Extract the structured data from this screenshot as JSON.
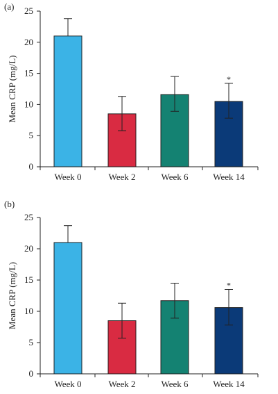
{
  "chart_data": [
    {
      "type": "bar",
      "panel_label": "(a)",
      "categories": [
        "Week 0",
        "Week 2",
        "Week 6",
        "Week 14"
      ],
      "values": [
        21.0,
        8.5,
        11.6,
        10.5
      ],
      "error_upper": [
        23.8,
        11.3,
        14.5,
        13.4
      ],
      "error_lower": [
        21.0,
        5.8,
        8.9,
        7.8
      ],
      "colors": [
        "#3bb3e6",
        "#d92b42",
        "#148272",
        "#0b3a78"
      ],
      "significance": [
        "",
        "",
        "",
        "*"
      ],
      "ylabel": "Mean CRP (mg/L)",
      "yticks": [
        0,
        5,
        10,
        15,
        20,
        25
      ],
      "ylim": [
        0,
        25
      ]
    },
    {
      "type": "bar",
      "panel_label": "(b)",
      "categories": [
        "Week 0",
        "Week 2",
        "Week 6",
        "Week 14"
      ],
      "values": [
        21.0,
        8.5,
        11.7,
        10.6
      ],
      "error_upper": [
        23.7,
        11.3,
        14.5,
        13.5
      ],
      "error_lower": [
        21.0,
        5.7,
        8.9,
        7.8
      ],
      "colors": [
        "#3bb3e6",
        "#d92b42",
        "#148272",
        "#0b3a78"
      ],
      "significance": [
        "",
        "",
        "",
        "*"
      ],
      "ylabel": "Mean CRP (mg/L)",
      "yticks": [
        0,
        5,
        10,
        15,
        20,
        25
      ],
      "ylim": [
        0,
        25
      ]
    }
  ]
}
